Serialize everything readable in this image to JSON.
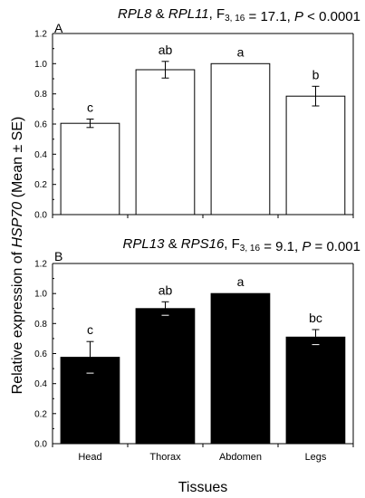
{
  "figure": {
    "y_axis_title_parts": [
      {
        "text": "Relative expression of ",
        "italic": false
      },
      {
        "text": "HSP70",
        "italic": true
      },
      {
        "text": " (Mean ± SE)",
        "italic": false
      }
    ],
    "x_axis_title": "Tissues"
  },
  "panels": [
    {
      "letter": "A",
      "title_parts": [
        {
          "text": "RPL8",
          "italic": true,
          "sub": false
        },
        {
          "text": " & ",
          "italic": false,
          "sub": false
        },
        {
          "text": "RPL11",
          "italic": true,
          "sub": false
        },
        {
          "text": ", F",
          "italic": false,
          "sub": false
        },
        {
          "text": "3, 16",
          "italic": false,
          "sub": true
        },
        {
          "text": " = 17.1, ",
          "italic": false,
          "sub": false
        },
        {
          "text": "P",
          "italic": true,
          "sub": false
        },
        {
          "text": " < 0.0001",
          "italic": false,
          "sub": false
        }
      ],
      "bar_fill": "#ffffff"
    },
    {
      "letter": "B",
      "title_parts": [
        {
          "text": "RPL13",
          "italic": true,
          "sub": false
        },
        {
          "text": " & ",
          "italic": false,
          "sub": false
        },
        {
          "text": "RPS16",
          "italic": true,
          "sub": false
        },
        {
          "text": ", F",
          "italic": false,
          "sub": false
        },
        {
          "text": "3, 16",
          "italic": false,
          "sub": true
        },
        {
          "text": " = 9.1, ",
          "italic": false,
          "sub": false
        },
        {
          "text": "P",
          "italic": true,
          "sub": false
        },
        {
          "text": " = 0.001",
          "italic": false,
          "sub": false
        }
      ],
      "bar_fill": "#000000"
    }
  ],
  "chart_data": [
    {
      "type": "bar",
      "panel": "A",
      "categories": [
        "Head",
        "Thorax",
        "Abdomen",
        "Legs"
      ],
      "values": [
        0.605,
        0.96,
        1.0,
        0.785
      ],
      "errors": [
        0.028,
        0.055,
        0.0,
        0.065
      ],
      "significance_labels": [
        "c",
        "ab",
        "a",
        "b"
      ],
      "ylim": [
        0,
        1.2
      ],
      "yticks": [
        "0.0",
        "0.2",
        "0.4",
        "0.6",
        "0.8",
        "1.0",
        "1.2"
      ],
      "title": "RPL8 & RPL11, F3, 16 = 17.1, P < 0.0001",
      "xlabel": "",
      "ylabel": "Relative expression of HSP70 (Mean ± SE)",
      "grid": false
    },
    {
      "type": "bar",
      "panel": "B",
      "categories": [
        "Head",
        "Thorax",
        "Abdomen",
        "Legs"
      ],
      "values": [
        0.575,
        0.9,
        1.0,
        0.71
      ],
      "errors": [
        0.105,
        0.045,
        0.0,
        0.05
      ],
      "significance_labels": [
        "c",
        "ab",
        "a",
        "bc"
      ],
      "ylim": [
        0,
        1.2
      ],
      "yticks": [
        "0.0",
        "0.2",
        "0.4",
        "0.6",
        "0.8",
        "1.0",
        "1.2"
      ],
      "title": "RPL13 & RPS16, F3, 16 = 9.1, P = 0.001",
      "xlabel": "Tissues",
      "ylabel": "Relative expression of HSP70 (Mean ± SE)",
      "grid": false
    }
  ]
}
